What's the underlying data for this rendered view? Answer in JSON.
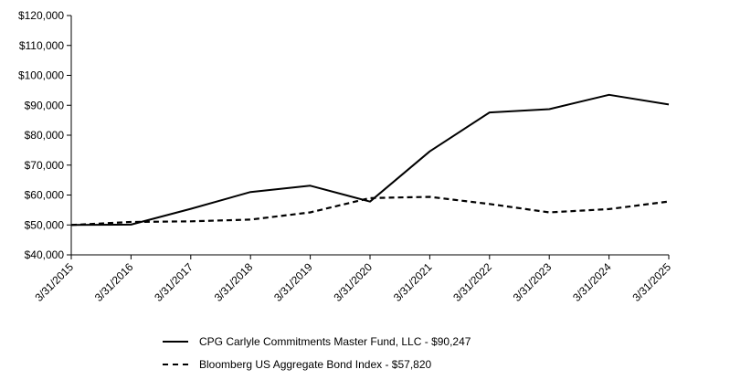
{
  "chart_data": {
    "type": "line",
    "title": "",
    "xlabel": "",
    "ylabel": "",
    "categories": [
      "3/31/2015",
      "3/31/2016",
      "3/31/2017",
      "3/31/2018",
      "3/31/2019",
      "3/31/2020",
      "3/31/2021",
      "3/31/2022",
      "3/31/2023",
      "3/31/2024",
      "3/31/2025"
    ],
    "ylim": [
      40000,
      120000
    ],
    "yticks": [
      40000,
      50000,
      60000,
      70000,
      80000,
      90000,
      100000,
      110000,
      120000
    ],
    "ytick_labels": [
      "$40,000",
      "$50,000",
      "$60,000",
      "$70,000",
      "$80,000",
      "$90,000",
      "$100,000",
      "$110,000",
      "$120,000"
    ],
    "grid": false,
    "legend_position": "bottom",
    "series": [
      {
        "name": "CPG Carlyle Commitments Master Fund, LLC - $90,247",
        "style": "solid",
        "color": "#000000",
        "values": [
          50000,
          50100,
          55400,
          61000,
          63100,
          57800,
          74600,
          87600,
          88700,
          93500,
          90247
        ]
      },
      {
        "name": "Bloomberg US Aggregate Bond Index - $57,820",
        "style": "dashed",
        "color": "#000000",
        "values": [
          50000,
          51000,
          51200,
          51800,
          54200,
          59000,
          59400,
          57000,
          54200,
          55300,
          57820
        ]
      }
    ]
  }
}
